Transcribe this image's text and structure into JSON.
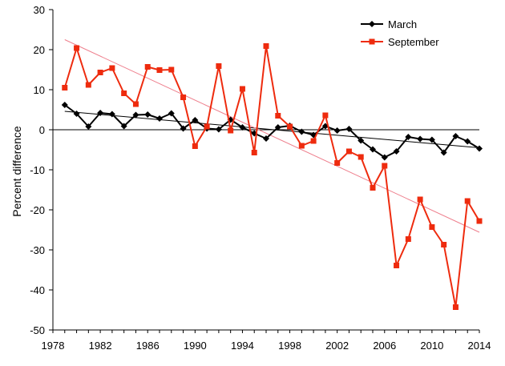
{
  "chart_data": {
    "type": "line",
    "title": "",
    "xlabel": "",
    "ylabel": "Percent difference",
    "xlim": [
      1978,
      2014
    ],
    "ylim": [
      -50,
      30
    ],
    "xticks": [
      1978,
      1982,
      1986,
      1990,
      1994,
      1998,
      2002,
      2006,
      2010,
      2014
    ],
    "yticks": [
      30,
      20,
      10,
      0,
      -10,
      -20,
      -30,
      -40,
      -50
    ],
    "grid": false,
    "legend_position": "top-right",
    "x": [
      1979,
      1980,
      1981,
      1982,
      1983,
      1984,
      1985,
      1986,
      1987,
      1988,
      1989,
      1990,
      1991,
      1992,
      1993,
      1994,
      1995,
      1996,
      1997,
      1998,
      1999,
      2000,
      2001,
      2002,
      2003,
      2004,
      2005,
      2006,
      2007,
      2008,
      2009,
      2010,
      2011,
      2012,
      2013,
      2014
    ],
    "series": [
      {
        "name": "March",
        "color": "#000000",
        "marker": "diamond",
        "values": [
          6.2,
          4.0,
          0.8,
          4.2,
          3.9,
          0.9,
          3.7,
          3.8,
          2.8,
          4.1,
          0.3,
          2.4,
          0.3,
          0.1,
          2.5,
          0.6,
          -0.9,
          -2.2,
          0.6,
          1.0,
          -0.5,
          -1.3,
          0.9,
          -0.2,
          0.2,
          -2.7,
          -4.9,
          -6.9,
          -5.4,
          -1.8,
          -2.3,
          -2.5,
          -5.7,
          -1.6,
          -2.9,
          -4.7
        ],
        "trend": {
          "x": [
            1979,
            2014
          ],
          "y": [
            4.6,
            -4.5
          ],
          "color": "#000000"
        }
      },
      {
        "name": "September",
        "color": "#ee2b0e",
        "marker": "square",
        "values": [
          10.5,
          20.4,
          11.2,
          14.3,
          15.4,
          9.1,
          6.4,
          15.7,
          14.9,
          15.0,
          8.1,
          -4.1,
          0.8,
          15.9,
          -0.2,
          10.2,
          -5.7,
          20.9,
          3.5,
          0.8,
          -4.0,
          -2.8,
          3.6,
          -8.3,
          -5.4,
          -6.8,
          -14.5,
          -9.0,
          -33.9,
          -27.3,
          -17.4,
          -24.3,
          -28.7,
          -44.3,
          -17.8,
          -22.8
        ],
        "trend": {
          "x": [
            1979,
            2014
          ],
          "y": [
            22.5,
            -25.6
          ],
          "color": "#ee7e8c"
        }
      }
    ]
  }
}
